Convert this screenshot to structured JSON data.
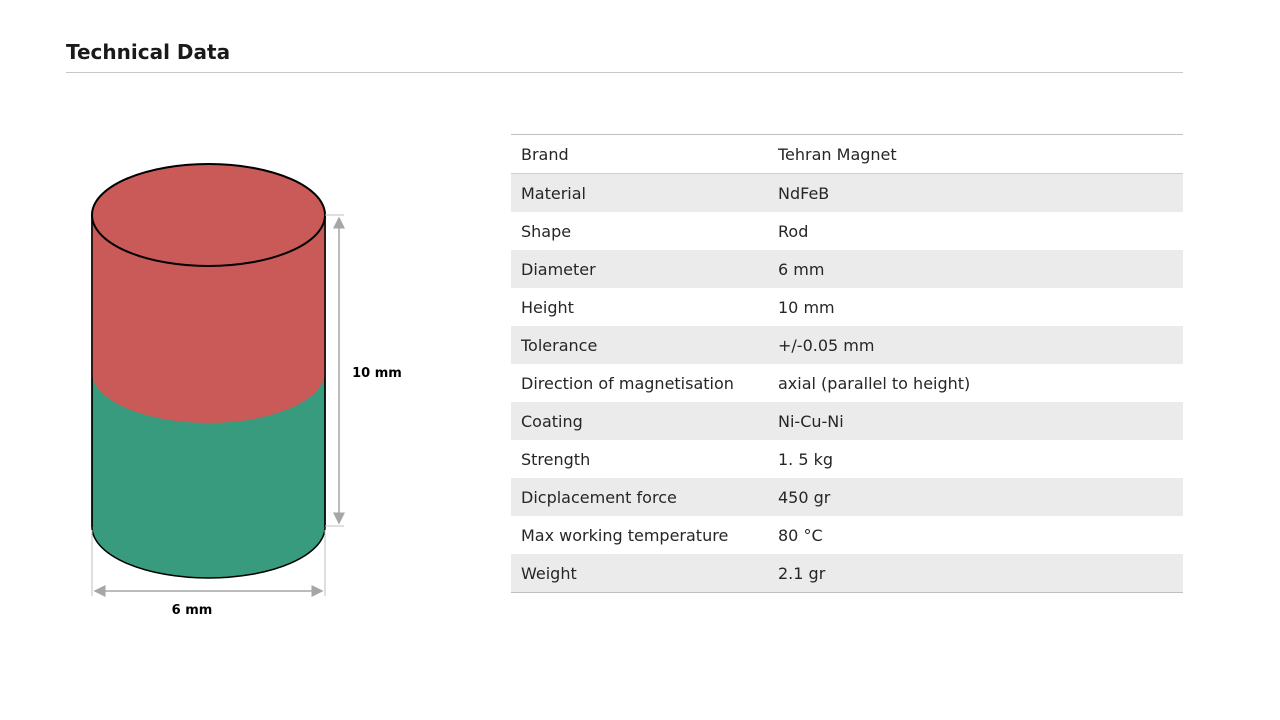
{
  "header": {
    "title": "Technical Data"
  },
  "diagram": {
    "height_label": "10 mm",
    "width_label": "6 mm"
  },
  "table": {
    "rows": [
      [
        "Brand",
        "Tehran Magnet"
      ],
      [
        "Material",
        "NdFeB"
      ],
      [
        "Shape",
        "Rod"
      ],
      [
        "Diameter",
        "6 mm"
      ],
      [
        "Height",
        "10 mm"
      ],
      [
        "Tolerance",
        "+/-0.05 mm"
      ],
      [
        "Direction of magnetisation",
        "axial (parallel to height)"
      ],
      [
        "Coating",
        "Ni-Cu-Ni"
      ],
      [
        "Strength",
        "1. 5 kg"
      ],
      [
        "Dicplacement force",
        "450 gr"
      ],
      [
        "Max working temperature",
        "80 °C"
      ],
      [
        "Weight",
        "2.1 gr"
      ]
    ]
  }
}
